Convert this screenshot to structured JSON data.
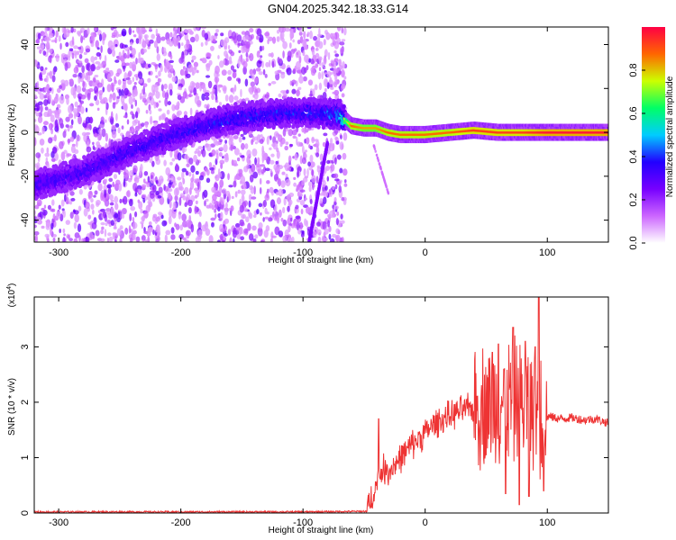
{
  "title": "GN04.2025.342.18.33.G14",
  "chart_data": [
    {
      "type": "heatmap",
      "xlabel": "Height of straight line (km)",
      "ylabel": "Frequency (Hz)",
      "xlim": [
        -320,
        150
      ],
      "ylim": [
        -50,
        48
      ],
      "xticks": [
        -300,
        -200,
        -100,
        0,
        100
      ],
      "xtick_labels": [
        "-300",
        "-200",
        "-100",
        "0",
        "100"
      ],
      "yticks": [
        -40,
        -20,
        0,
        20,
        40
      ],
      "ytick_labels": [
        "-40",
        "-20",
        "0",
        "20",
        "40"
      ],
      "colorbar": {
        "label": "Normalized spectral amplitude",
        "range": [
          0,
          1
        ],
        "ticks": [
          0.0,
          0.2,
          0.4,
          0.6,
          0.8
        ],
        "tick_labels": [
          "0.0",
          "0.2",
          "0.4",
          "0.6",
          "0.8"
        ],
        "colors": [
          "#ffffff",
          "#cc66ff",
          "#7700ff",
          "#2200ff",
          "#00ccff",
          "#00ff66",
          "#ccff00",
          "#ff6600",
          "#ff0044"
        ]
      },
      "ridge": {
        "x": [
          -320,
          -280,
          -240,
          -200,
          -160,
          -120,
          -90,
          -70,
          -60,
          -50,
          -40,
          -30,
          -20,
          0,
          20,
          40,
          60,
          80,
          100,
          120,
          150
        ],
        "frequency": [
          -24,
          -18,
          -8,
          0,
          6,
          9,
          9,
          8,
          3,
          2,
          2,
          0,
          -1,
          -1,
          0,
          1,
          0,
          0,
          0,
          0,
          0
        ],
        "amplitude": [
          0.25,
          0.25,
          0.27,
          0.27,
          0.3,
          0.3,
          0.3,
          0.4,
          0.85,
          0.8,
          0.8,
          0.85,
          0.85,
          0.85,
          0.85,
          0.9,
          0.9,
          0.9,
          0.95,
          0.95,
          0.95
        ]
      },
      "noise_extent": [
        -320,
        -65
      ]
    },
    {
      "type": "line",
      "xlabel": "Height of straight line (km)",
      "ylabel": "SNR (10 * v/v)",
      "y_multiplier": "(x10",
      "y_multiplier_exp": "4",
      "y_multiplier_close": ")",
      "xlim": [
        -320,
        150
      ],
      "ylim": [
        0,
        3.9
      ],
      "xticks": [
        -300,
        -200,
        -100,
        0,
        100
      ],
      "xtick_labels": [
        "-300",
        "-200",
        "-100",
        "0",
        "100"
      ],
      "yticks": [
        0,
        1,
        2,
        3
      ],
      "ytick_labels": [
        "0",
        "1",
        "2",
        "3"
      ],
      "color": "#ee3333",
      "series": [
        {
          "x": [
            -320,
            -200,
            -100,
            -48,
            -40,
            -35,
            -30,
            -20,
            -10,
            0,
            10,
            20,
            30,
            40,
            50,
            60,
            70,
            80,
            90,
            95,
            100,
            110,
            120,
            130,
            140,
            150
          ],
          "y": [
            0.02,
            0.02,
            0.02,
            0.03,
            0.5,
            0.8,
            0.75,
            1.0,
            1.25,
            1.45,
            1.65,
            1.75,
            1.85,
            1.9,
            1.95,
            2.0,
            2.05,
            1.95,
            1.9,
            1.8,
            1.75,
            1.7,
            1.72,
            1.68,
            1.7,
            1.62
          ],
          "spikes": [
            {
              "x": -38,
              "y": 1.7
            },
            {
              "x": 55,
              "y": 2.9
            },
            {
              "x": 60,
              "y": 3.05
            },
            {
              "x": 66,
              "y": 0.35
            },
            {
              "x": 72,
              "y": 3.35
            },
            {
              "x": 77,
              "y": 0.15
            },
            {
              "x": 82,
              "y": 3.1
            },
            {
              "x": 85,
              "y": 0.3
            },
            {
              "x": 90,
              "y": 3.0
            },
            {
              "x": 93,
              "y": 3.9
            },
            {
              "x": 97,
              "y": 0.4
            }
          ]
        }
      ]
    }
  ]
}
